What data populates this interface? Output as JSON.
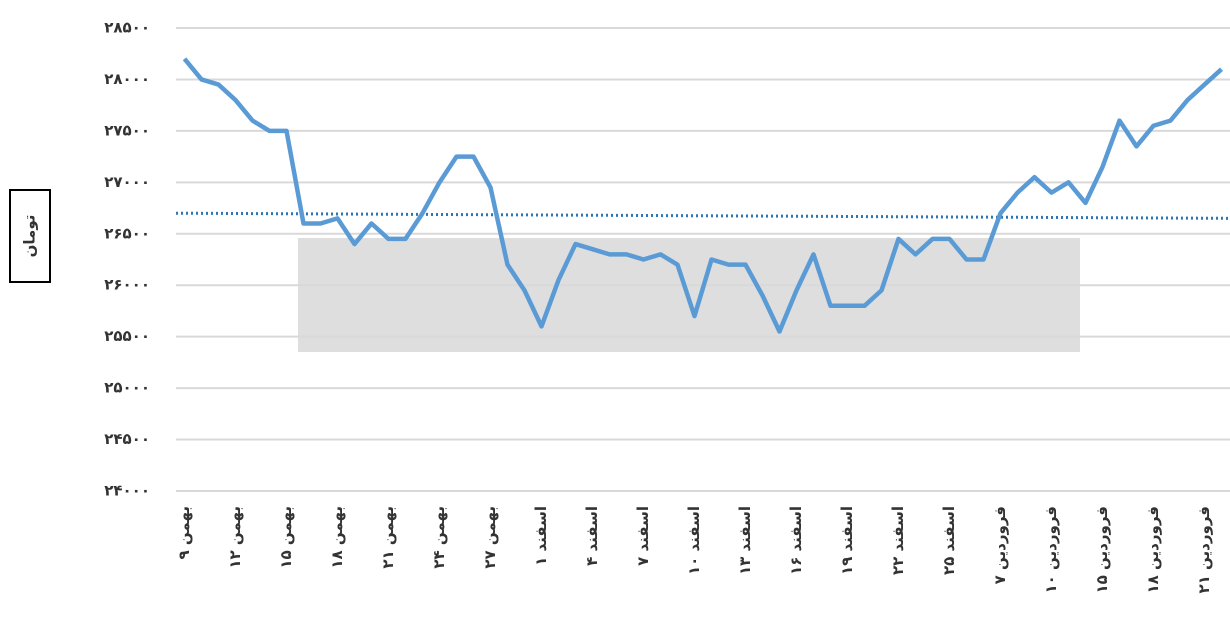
{
  "chart_data": {
    "type": "line",
    "y_label": "تومان",
    "categories": [
      "۹ بهمن",
      null,
      null,
      "۱۲ بهمن",
      null,
      null,
      "۱۵ بهمن",
      null,
      null,
      "۱۸ بهمن",
      null,
      null,
      "۲۱ بهمن",
      null,
      null,
      "۲۴ بهمن",
      null,
      null,
      "۲۷ بهمن",
      null,
      null,
      "اسفند ۱",
      null,
      null,
      "اسفند ۴",
      null,
      null,
      "اسفند ۷",
      null,
      null,
      "اسفند ۱۰",
      null,
      null,
      "اسفند ۱۳",
      null,
      null,
      "اسفند ۱۶",
      null,
      null,
      "اسفند ۱۹",
      null,
      null,
      "اسفند ۲۲",
      null,
      null,
      "اسفند ۲۵",
      null,
      null,
      "فروردین ۷",
      null,
      null,
      "فروردین ۱۰",
      null,
      null,
      "فروردین ۱۵",
      null,
      null,
      "فروردین ۱۸",
      null,
      null,
      "فروردین ۲۱",
      null
    ],
    "series": [
      {
        "color": "#5b9bd5",
        "values": [
          28200,
          28000,
          27950,
          27800,
          27600,
          27500,
          27500,
          26600,
          26600,
          26650,
          26400,
          26600,
          26450,
          26450,
          26700,
          27000,
          27250,
          27250,
          26950,
          26200,
          25950,
          25600,
          26050,
          26400,
          26350,
          26300,
          26300,
          26250,
          26300,
          26200,
          25700,
          26250,
          26200,
          26200,
          25900,
          25550,
          25950,
          26300,
          25800,
          25800,
          25800,
          25950,
          26450,
          26300,
          26450,
          26450,
          26250,
          26250,
          26700,
          26900,
          27050,
          26900,
          27000,
          26800,
          27150,
          27600,
          27350,
          27550,
          27600,
          27800,
          27950,
          28100
        ]
      }
    ],
    "trend_line": {
      "color": "#2e75b6",
      "start": 26700,
      "end": 26650
    },
    "ylim": [
      24000,
      28500
    ],
    "yticks": [
      {
        "value": 24000,
        "label": "۲۴۰۰۰"
      },
      {
        "value": 24500,
        "label": "۲۴۵۰۰"
      },
      {
        "value": 25000,
        "label": "۲۵۰۰۰"
      },
      {
        "value": 25500,
        "label": "۲۵۵۰۰"
      },
      {
        "value": 26000,
        "label": "۲۶۰۰۰"
      },
      {
        "value": 26500,
        "label": "۲۶۵۰۰"
      },
      {
        "value": 27000,
        "label": "۲۷۰۰۰"
      },
      {
        "value": 27500,
        "label": "۲۷۵۰۰"
      },
      {
        "value": 28000,
        "label": "۲۸۰۰۰"
      },
      {
        "value": 28500,
        "label": "۲۸۵۰۰"
      }
    ],
    "grid": true
  }
}
